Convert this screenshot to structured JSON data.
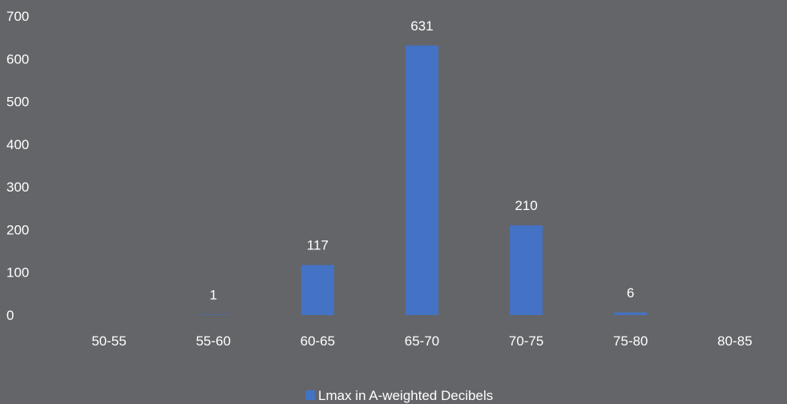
{
  "chart_data": {
    "type": "bar",
    "categories": [
      "50-55",
      "55-60",
      "60-65",
      "65-70",
      "70-75",
      "75-80",
      "80-85"
    ],
    "series": [
      {
        "name": "Lmax in A-weighted Decibels",
        "values": [
          0,
          1,
          117,
          631,
          210,
          6,
          0
        ],
        "data_labels": [
          "",
          "1",
          "117",
          "631",
          "210",
          "6",
          ""
        ]
      }
    ],
    "ylim": [
      0,
      700
    ],
    "yticks": [
      0,
      100,
      200,
      300,
      400,
      500,
      600,
      700
    ],
    "grid": false,
    "legend": "bottom-center"
  },
  "colors": {
    "background": "#646569",
    "bar": "#4472C4",
    "text": "#ffffff"
  }
}
